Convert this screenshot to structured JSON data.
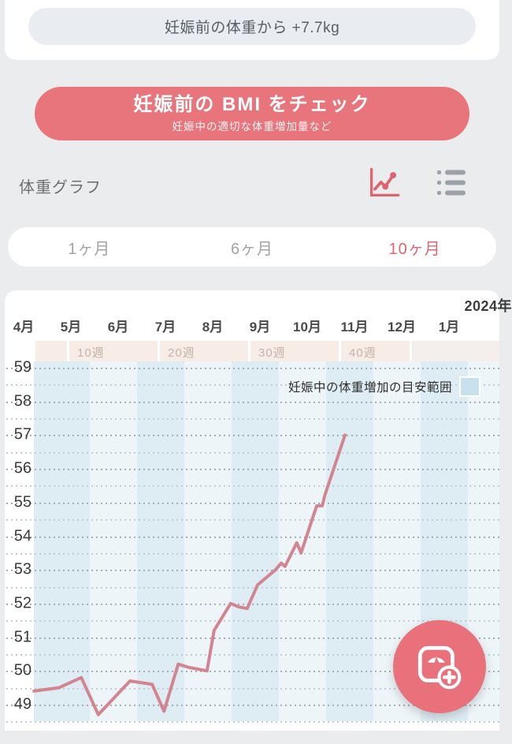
{
  "header": {
    "summary_pill": "妊娠前の体重から +7.7kg"
  },
  "bmi_button": {
    "title": "妊娠前の BMI をチェック",
    "subtitle": "妊娠中の適切な体重増加量など",
    "color": "#e8757c"
  },
  "section": {
    "title": "体重グラフ"
  },
  "icons": {
    "graph_icon": "line-chart",
    "list_icon": "bullet-list",
    "fab_icon": "weight-scale-add"
  },
  "tabs": [
    {
      "label": "1ヶ月",
      "active": false
    },
    {
      "label": "6ヶ月",
      "active": false
    },
    {
      "label": "10ヶ月",
      "active": true
    }
  ],
  "chart_data": {
    "type": "line",
    "title": "",
    "year_label": "2024年",
    "x_months": [
      "4月",
      "5月",
      "6月",
      "7月",
      "8月",
      "9月",
      "10月",
      "11月",
      "12月",
      "1月"
    ],
    "week_markers": [
      "10週",
      "20週",
      "30週",
      "40週"
    ],
    "yticks": [
      59,
      58,
      57,
      56,
      55,
      54,
      53,
      52,
      51,
      50,
      49
    ],
    "ylim": [
      48.5,
      59.2
    ],
    "grid": "dotted horizontal every 0.5kg",
    "legend": [
      {
        "label": "妊娠中の体重増加の目安範囲",
        "color": "#c7e1ed"
      }
    ],
    "range_band": {
      "fill": "#deedf4",
      "kg_min": 48.5,
      "kg_max": 59.2
    },
    "series": [
      {
        "name": "体重",
        "unit": "kg",
        "color": "#d28490",
        "points": [
          {
            "m": 0.32,
            "kg": 49.4
          },
          {
            "m": 0.85,
            "kg": 49.5
          },
          {
            "m": 1.32,
            "kg": 49.8
          },
          {
            "m": 1.68,
            "kg": 48.7
          },
          {
            "m": 2.35,
            "kg": 49.7
          },
          {
            "m": 2.82,
            "kg": 49.6
          },
          {
            "m": 3.07,
            "kg": 48.8
          },
          {
            "m": 3.37,
            "kg": 50.2
          },
          {
            "m": 3.6,
            "kg": 50.1
          },
          {
            "m": 3.98,
            "kg": 50.0
          },
          {
            "m": 4.13,
            "kg": 51.2
          },
          {
            "m": 4.48,
            "kg": 52.0
          },
          {
            "m": 4.65,
            "kg": 51.9
          },
          {
            "m": 4.83,
            "kg": 51.85
          },
          {
            "m": 5.05,
            "kg": 52.55
          },
          {
            "m": 5.43,
            "kg": 53.0
          },
          {
            "m": 5.55,
            "kg": 53.2
          },
          {
            "m": 5.63,
            "kg": 53.1
          },
          {
            "m": 5.88,
            "kg": 53.8
          },
          {
            "m": 5.97,
            "kg": 53.5
          },
          {
            "m": 6.3,
            "kg": 54.9
          },
          {
            "m": 6.42,
            "kg": 54.9
          },
          {
            "m": 6.47,
            "kg": 55.2
          },
          {
            "m": 6.9,
            "kg": 57.0
          }
        ]
      }
    ]
  }
}
